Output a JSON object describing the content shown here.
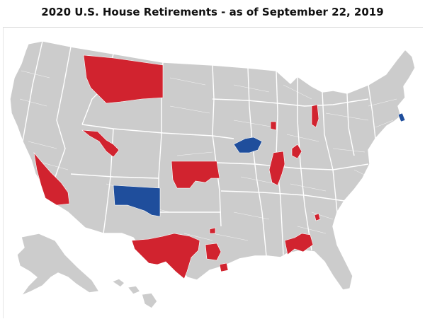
{
  "title": "2020 U.S. House Retirements - as of September 22, 2019",
  "colors": {
    "republican": "#d1232f",
    "democrat": "#1f4e9c",
    "no_retirement": "#cccccc",
    "boundary": "#ffffff"
  }
}
